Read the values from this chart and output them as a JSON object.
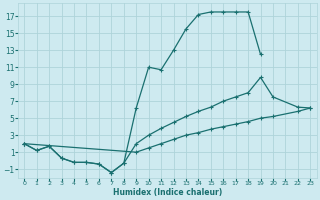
{
  "xlabel": "Humidex (Indice chaleur)",
  "bg_color": "#ceeaf0",
  "grid_color": "#aed4da",
  "line_color": "#1a7070",
  "xlim": [
    -0.5,
    23.5
  ],
  "ylim": [
    -2.0,
    18.5
  ],
  "xticks": [
    0,
    1,
    2,
    3,
    4,
    5,
    6,
    7,
    8,
    9,
    10,
    11,
    12,
    13,
    14,
    15,
    16,
    17,
    18,
    19,
    20,
    21,
    22,
    23
  ],
  "yticks": [
    -1,
    1,
    3,
    5,
    7,
    9,
    11,
    13,
    15,
    17
  ],
  "c1x": [
    0,
    1,
    2,
    3,
    4,
    5,
    6,
    7,
    8,
    9,
    10,
    11,
    12,
    13,
    14,
    15,
    16,
    17,
    18,
    19
  ],
  "c1y": [
    2.0,
    1.2,
    1.7,
    0.3,
    -0.2,
    -0.2,
    -0.4,
    -1.4,
    -0.3,
    6.2,
    11.0,
    10.7,
    13.0,
    15.5,
    17.2,
    17.5,
    17.5,
    17.5,
    17.5,
    12.5
  ],
  "c2x": [
    0,
    1,
    2,
    3,
    4,
    5,
    6,
    7,
    8,
    9,
    10,
    11,
    12,
    13,
    14,
    15,
    16,
    17,
    18,
    19,
    20,
    22,
    23
  ],
  "c2y": [
    2.0,
    1.2,
    1.7,
    0.3,
    -0.2,
    -0.2,
    -0.4,
    -1.4,
    -0.3,
    2.0,
    3.0,
    3.8,
    4.5,
    5.2,
    5.8,
    6.3,
    7.0,
    7.5,
    8.0,
    9.8,
    7.5,
    6.3,
    6.2
  ],
  "c3x": [
    0,
    9,
    10,
    11,
    12,
    13,
    14,
    15,
    16,
    17,
    18,
    19,
    20,
    22,
    23
  ],
  "c3y": [
    2.0,
    1.0,
    1.5,
    2.0,
    2.5,
    3.0,
    3.3,
    3.7,
    4.0,
    4.3,
    4.6,
    5.0,
    5.2,
    5.8,
    6.2
  ]
}
